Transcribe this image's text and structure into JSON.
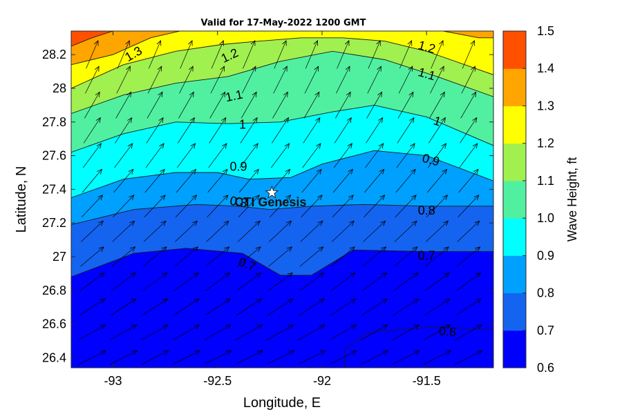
{
  "chart_data": {
    "type": "contourf",
    "title": "Valid for 17-May-2022 1200 GMT",
    "xlabel": "Longitude, E",
    "ylabel": "Latitude, N",
    "xlim": [
      -93.2,
      -91.18
    ],
    "ylim": [
      26.34,
      28.34
    ],
    "x_ticks": [
      -93,
      -92.5,
      -92,
      -91.5
    ],
    "y_ticks": [
      26.4,
      26.6,
      26.8,
      27,
      27.2,
      27.4,
      27.6,
      27.8,
      28,
      28.2
    ],
    "colorbar": {
      "title": "Wave Height, ft",
      "levels": [
        0.6,
        0.7,
        0.8,
        0.9,
        1.0,
        1.1,
        1.2,
        1.3,
        1.4,
        1.5
      ],
      "tick_labels": [
        "0.6",
        "0.7",
        "0.8",
        "0.9",
        "1.0",
        "1.1",
        "1.2",
        "1.3",
        "1.4",
        "1.5"
      ],
      "colors": [
        "#0000ff",
        "#1464f0",
        "#00a0ff",
        "#00ffff",
        "#50f0a0",
        "#a0f050",
        "#ffff00",
        "#ffa500",
        "#ff5000"
      ]
    },
    "contour_lines": [
      {
        "level": 0.7,
        "label": "0.7",
        "points": [
          [
            -93.2,
            26.88
          ],
          [
            -92.9,
            27.02
          ],
          [
            -92.65,
            27.05
          ],
          [
            -92.38,
            27.02
          ],
          [
            -92.2,
            26.89
          ],
          [
            -92.05,
            26.89
          ],
          [
            -91.85,
            27.04
          ],
          [
            -91.5,
            27.03
          ],
          [
            -91.18,
            27.03
          ]
        ]
      },
      {
        "level": 0.8,
        "label": "0.8",
        "points": [
          [
            -93.2,
            27.19
          ],
          [
            -92.9,
            27.28
          ],
          [
            -92.6,
            27.31
          ],
          [
            -92.4,
            27.3
          ],
          [
            -92.25,
            27.28
          ],
          [
            -92.05,
            27.3
          ],
          [
            -91.8,
            27.31
          ],
          [
            -91.5,
            27.3
          ],
          [
            -91.18,
            27.3
          ]
        ]
      },
      {
        "level": 0.9,
        "label": "0.9",
        "points": [
          [
            -93.2,
            27.35
          ],
          [
            -92.95,
            27.46
          ],
          [
            -92.7,
            27.5
          ],
          [
            -92.5,
            27.5
          ],
          [
            -92.35,
            27.46
          ],
          [
            -92.15,
            27.47
          ],
          [
            -92.0,
            27.55
          ],
          [
            -91.75,
            27.63
          ],
          [
            -91.5,
            27.6
          ],
          [
            -91.18,
            27.45
          ]
        ]
      },
      {
        "level": 1.0,
        "label": "1",
        "points": [
          [
            -93.2,
            27.62
          ],
          [
            -92.95,
            27.73
          ],
          [
            -92.7,
            27.8
          ],
          [
            -92.45,
            27.79
          ],
          [
            -92.2,
            27.8
          ],
          [
            -91.95,
            27.86
          ],
          [
            -91.75,
            27.9
          ],
          [
            -91.5,
            27.83
          ],
          [
            -91.18,
            27.66
          ]
        ]
      },
      {
        "level": 1.1,
        "label": "1.1",
        "points": [
          [
            -93.2,
            27.85
          ],
          [
            -92.95,
            27.96
          ],
          [
            -92.7,
            28.03
          ],
          [
            -92.45,
            28.07
          ],
          [
            -92.2,
            28.16
          ],
          [
            -91.95,
            28.22
          ],
          [
            -91.7,
            28.17
          ],
          [
            -91.45,
            28.07
          ],
          [
            -91.18,
            27.95
          ]
        ]
      },
      {
        "level": 1.2,
        "label": "1.2",
        "points": [
          [
            -93.2,
            28.0
          ],
          [
            -92.95,
            28.14
          ],
          [
            -92.7,
            28.22
          ],
          [
            -92.48,
            28.26
          ],
          [
            -92.3,
            28.28
          ],
          [
            -92.1,
            28.3
          ],
          [
            -91.9,
            28.3
          ],
          [
            -91.7,
            28.28
          ],
          [
            -91.5,
            28.22
          ],
          [
            -91.18,
            28.08
          ]
        ]
      },
      {
        "level": 1.3,
        "label": "1.3",
        "points": [
          [
            -93.2,
            28.14
          ],
          [
            -93.0,
            28.2
          ],
          [
            -92.82,
            28.3
          ],
          [
            -92.68,
            28.34
          ]
        ]
      },
      {
        "level": 1.3,
        "label": "",
        "points": [
          [
            -91.42,
            28.34
          ],
          [
            -91.25,
            28.3
          ],
          [
            -91.18,
            28.3
          ]
        ]
      },
      {
        "level": 1.4,
        "label": "",
        "points": [
          [
            -93.2,
            28.25
          ],
          [
            -93.1,
            28.3
          ],
          [
            -93.0,
            28.34
          ]
        ]
      },
      {
        "level": 0.6,
        "label": "0.6",
        "points": [
          [
            -91.89,
            26.34
          ],
          [
            -91.89,
            26.45
          ],
          [
            -91.78,
            26.55
          ],
          [
            -91.5,
            26.58
          ],
          [
            -91.18,
            26.57
          ]
        ]
      }
    ],
    "contour_label_positions": [
      {
        "text": "0.7",
        "x": -92.36,
        "y": 26.95,
        "angle": 22
      },
      {
        "text": "0.8",
        "x": -92.4,
        "y": 27.32,
        "angle": 10
      },
      {
        "text": "0.9",
        "x": -92.4,
        "y": 27.53,
        "angle": 0
      },
      {
        "text": "1",
        "x": -92.38,
        "y": 27.78,
        "angle": 0
      },
      {
        "text": "1.1",
        "x": -92.42,
        "y": 27.95,
        "angle": -12
      },
      {
        "text": "1.2",
        "x": -92.44,
        "y": 28.19,
        "angle": -25
      },
      {
        "text": "1.3",
        "x": -92.9,
        "y": 28.2,
        "angle": -30
      },
      {
        "text": "1.2",
        "x": -91.5,
        "y": 28.24,
        "angle": 16
      },
      {
        "text": "1.1",
        "x": -91.5,
        "y": 28.08,
        "angle": 16
      },
      {
        "text": "1",
        "x": -91.45,
        "y": 27.8,
        "angle": 18
      },
      {
        "text": "0.9",
        "x": -91.48,
        "y": 27.57,
        "angle": 15
      },
      {
        "text": "0.8",
        "x": -91.5,
        "y": 27.27,
        "angle": 0
      },
      {
        "text": "0.7",
        "x": -91.5,
        "y": 27.0,
        "angle": 0
      },
      {
        "text": "0.6",
        "x": -91.4,
        "y": 26.55,
        "angle": 5
      }
    ],
    "station": {
      "name": "CTI Genesis",
      "x": -92.24,
      "y": 27.38
    },
    "wave_direction_field": {
      "x": [
        -93.1,
        -92.95,
        -92.8,
        -92.65,
        -92.5,
        -92.35,
        -92.2,
        -92.05,
        -91.9,
        -91.75,
        -91.6,
        -91.45,
        -91.3
      ],
      "y": [
        26.4,
        26.55,
        26.7,
        26.85,
        27.0,
        27.15,
        27.3,
        27.45,
        27.6,
        27.75,
        27.9,
        28.05,
        28.2
      ],
      "direction_note_deg": "toward"
    }
  }
}
